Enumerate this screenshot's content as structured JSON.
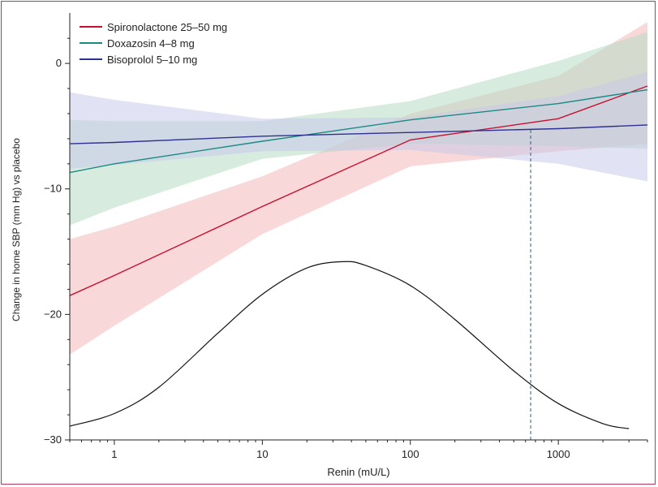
{
  "chart_data": {
    "type": "line",
    "xlabel": "Renin (mU/L)",
    "ylabel": "Change in home SBP (mm Hg) vs placebo",
    "xscale": "log",
    "xlim": [
      0.5,
      4000
    ],
    "ylim": [
      -30,
      3.5
    ],
    "xticks": [
      {
        "value": 1,
        "label": "1"
      },
      {
        "value": 10,
        "label": "10"
      },
      {
        "value": 100,
        "label": "100"
      },
      {
        "value": 1000,
        "label": "1000"
      }
    ],
    "yticks": [
      {
        "value": 0,
        "label": "0"
      },
      {
        "value": -10,
        "label": "−10"
      },
      {
        "value": -20,
        "label": "−20"
      },
      {
        "value": -30,
        "label": "−30"
      }
    ],
    "grid": false,
    "legend_position": "top-left",
    "series": [
      {
        "name": "Spironolactone 25–50 mg",
        "color": "#c8102e",
        "band_color": "#f2b8b8",
        "x": [
          0.5,
          1,
          10,
          100,
          1000,
          4000
        ],
        "y": [
          -18.5,
          -16.9,
          -11.4,
          -6.1,
          -4.4,
          -1.8
        ],
        "lower": [
          -23.2,
          -20.9,
          -13.6,
          -8.2,
          -7.0,
          -6.4
        ],
        "upper": [
          -14.0,
          -13.0,
          -9.0,
          -4.0,
          -1.0,
          3.3
        ]
      },
      {
        "name": "Doxazosin 4–8 mg",
        "color": "#1a8a84",
        "band_color": "#b7dcc4",
        "x": [
          0.5,
          1,
          10,
          100,
          1000,
          4000
        ],
        "y": [
          -8.7,
          -8.0,
          -6.2,
          -4.5,
          -3.2,
          -2.1
        ],
        "lower": [
          -12.9,
          -11.5,
          -7.6,
          -6.4,
          -6.6,
          -6.8
        ],
        "upper": [
          -4.5,
          -4.6,
          -4.6,
          -3.0,
          0.2,
          2.5
        ]
      },
      {
        "name": "Bisoprolol 5–10 mg",
        "color": "#2e3192",
        "band_color": "#c8cbea",
        "x": [
          0.5,
          1,
          10,
          100,
          1000,
          4000
        ],
        "y": [
          -6.4,
          -6.3,
          -5.8,
          -5.5,
          -5.2,
          -4.9
        ],
        "lower": [
          -8.4,
          -8.1,
          -7.0,
          -6.9,
          -8.0,
          -9.4
        ],
        "upper": [
          -2.3,
          -2.9,
          -4.4,
          -4.3,
          -2.6,
          -0.7
        ]
      }
    ],
    "distribution_curve": {
      "color": "#111111",
      "x": [
        0.5,
        1,
        2,
        5,
        10,
        20,
        35,
        50,
        100,
        200,
        500,
        1000,
        2000,
        3000
      ],
      "y": [
        -28.9,
        -27.9,
        -25.8,
        -21.5,
        -18.4,
        -16.3,
        -15.8,
        -16.1,
        -17.7,
        -20.4,
        -24.5,
        -27.1,
        -28.7,
        -29.1
      ]
    },
    "reference_line": {
      "x": 650,
      "y_from": -30,
      "y_to": -5.2,
      "color": "#2a6070",
      "style": "dashed"
    }
  }
}
